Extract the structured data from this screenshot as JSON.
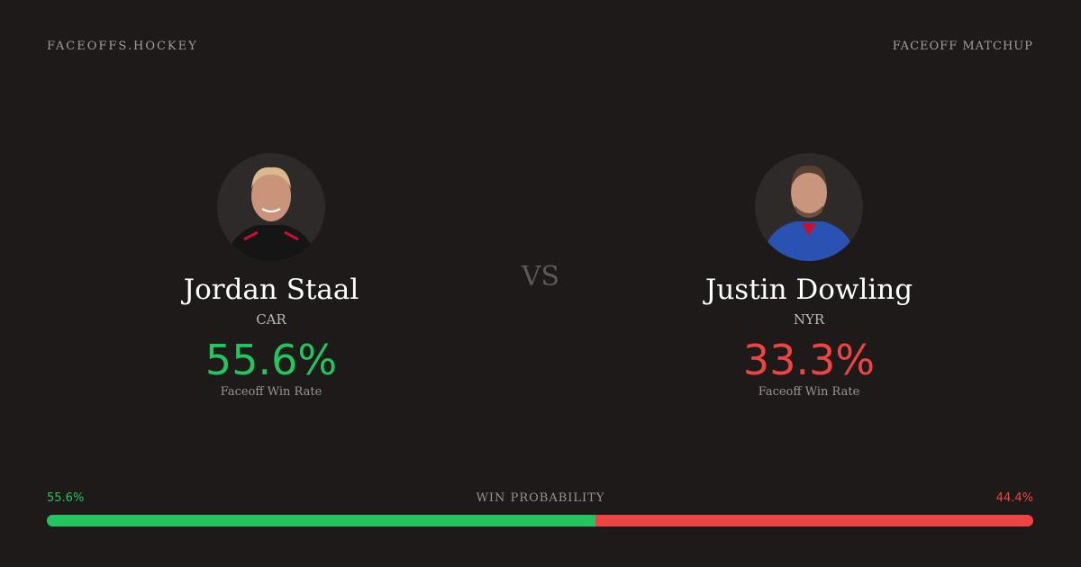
{
  "header": {
    "brand": "FACEOFFS.HOCKEY",
    "label": "FACEOFF MATCHUP"
  },
  "vs": "VS",
  "players": [
    {
      "name": "Jordan Staal",
      "team": "CAR",
      "rate": "55.6%",
      "rate_label": "Faceoff Win Rate"
    },
    {
      "name": "Justin Dowling",
      "team": "NYR",
      "rate": "33.3%",
      "rate_label": "Faceoff Win Rate"
    }
  ],
  "win_probability": {
    "label": "WIN PROBABILITY",
    "home": {
      "value": 55.6,
      "value_label": "55.6%",
      "color": "#22c55e"
    },
    "away": {
      "value": 44.4,
      "value_label": "44.4%",
      "color": "#ef4444"
    }
  }
}
